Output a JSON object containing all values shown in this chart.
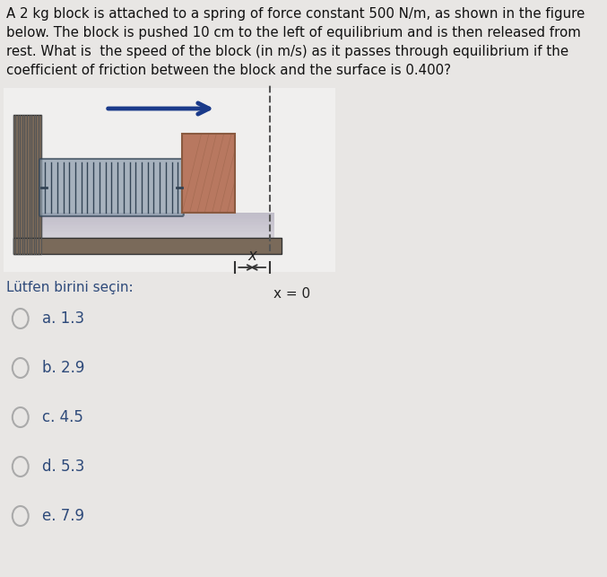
{
  "background_color": "#e8e6e4",
  "question_text": "A 2 kg block is attached to a spring of force constant 500 N/m, as shown in the figure\nbelow. The block is pushed 10 cm to the left of equilibrium and is then released from\nrest. What is  the speed of the block (in m/s) as it passes through equilibrium if the\ncoefficient of friction between the block and the surface is 0.400?",
  "question_fontsize": 10.8,
  "prompt_text": "Lütfen birini seçin:",
  "prompt_fontsize": 11,
  "choices": [
    "a. 1.3",
    "b. 2.9",
    "c. 4.5",
    "d. 5.3",
    "e. 7.9"
  ],
  "choices_fontsize": 12,
  "text_color": "#2e4a7a",
  "question_text_color": "#111111",
  "box_bg": "#f0efee",
  "wall_face_color": "#7a6a5a",
  "wall_hatch_color": "#555555",
  "spring_body_color": "#8899aa",
  "spring_line_color": "#334455",
  "block_color": "#b87860",
  "block_edge_color": "#8a5a40",
  "surface_color_top": "#c8c0d0",
  "surface_color_bot": "#d8d4e0",
  "arrow_color": "#1a3a8a",
  "eq_line_color": "#555555",
  "annot_color": "#222222",
  "radio_color": "#aaaaaa"
}
